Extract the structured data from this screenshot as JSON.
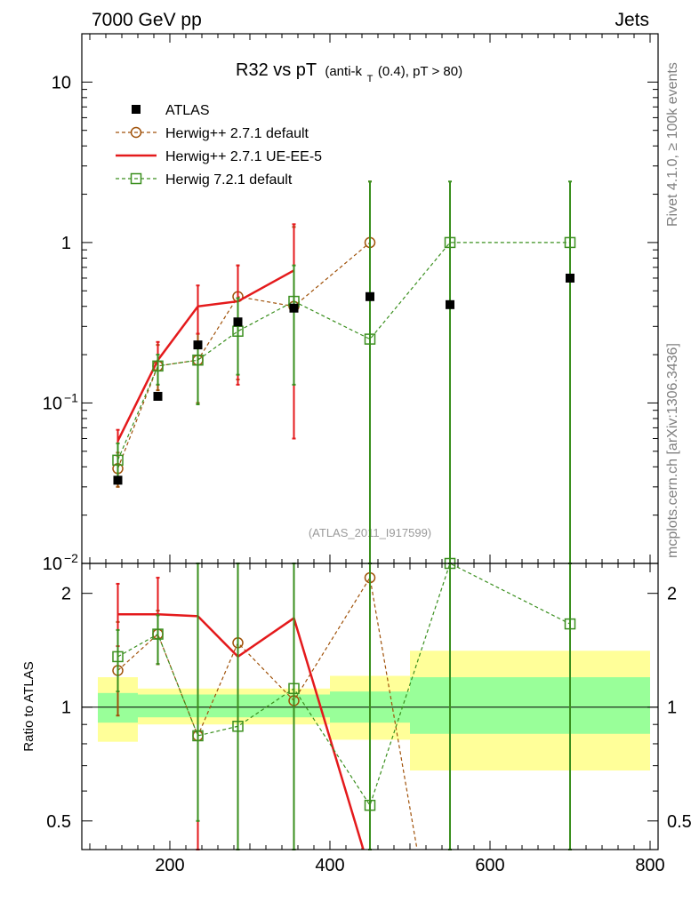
{
  "header": {
    "left": "7000 GeV pp",
    "right": "Jets",
    "side_rivet": "Rivet 4.1.0, ≥ 100k events",
    "side_mcplots": "mcplots.cern.ch [arXiv:1306.3436]",
    "watermark": "(ATLAS_2011_I917599)"
  },
  "title": {
    "main": "R32 vs pT",
    "sub_a": "(anti-k",
    "sub_t": "T",
    "sub_b": "(0.4), pT > 80)"
  },
  "colors": {
    "atlas": "#000000",
    "herwig271": "#a0520a",
    "herwig271_ue": "#e41a1c",
    "herwig721": "#3a8f1e",
    "band_inner": "#99ff99",
    "band_outer": "#ffff99"
  },
  "chart_data": {
    "type": "scatter",
    "x_axis": {
      "range": [
        90,
        810
      ],
      "ticks": [
        200,
        400,
        600,
        800
      ],
      "label": ""
    },
    "main_panel": {
      "yscale": "log",
      "ylim": [
        0.01,
        20
      ],
      "tick_labels": [
        "10",
        "1",
        "10",
        "10"
      ],
      "tick_exps": [
        "",
        "",
        "−1",
        "−2"
      ],
      "ylabel": "",
      "legend_position": "top-left"
    },
    "ratio_panel": {
      "yscale": "log",
      "ylim": [
        0.42,
        2.4
      ],
      "ticks": [
        2,
        1,
        0.5
      ],
      "tick_labels": [
        "2",
        "1",
        "0.5"
      ],
      "ylabel": "Ratio to ATLAS"
    },
    "reference": {
      "name": "ATLAS",
      "x": [
        135,
        185,
        235,
        285,
        355,
        450,
        550,
        700
      ],
      "y": [
        0.033,
        0.11,
        0.23,
        0.32,
        0.39,
        0.46,
        0.41,
        0.6
      ],
      "xbin_edges": [
        110,
        160,
        210,
        260,
        310,
        400,
        500,
        600,
        800
      ],
      "band_inner": [
        [
          0.91,
          1.09
        ],
        [
          0.94,
          1.08
        ],
        [
          0.94,
          1.08
        ],
        [
          0.94,
          1.08
        ],
        [
          0.94,
          1.08
        ],
        [
          0.91,
          1.1
        ],
        [
          0.85,
          1.2
        ],
        [
          0.85,
          1.2
        ]
      ],
      "band_outer": [
        [
          0.81,
          1.2
        ],
        [
          0.9,
          1.12
        ],
        [
          0.9,
          1.12
        ],
        [
          0.9,
          1.12
        ],
        [
          0.9,
          1.12
        ],
        [
          0.82,
          1.21
        ],
        [
          0.68,
          1.41
        ],
        [
          0.68,
          1.41
        ]
      ]
    },
    "series": [
      {
        "name": "Herwig++ 2.7.1 default",
        "style": "circle-dashed",
        "x": [
          135,
          185,
          235,
          285,
          355,
          450
        ],
        "y": [
          0.039,
          0.17,
          0.185,
          0.46,
          0.4,
          1.0
        ],
        "err_up": [
          0.049,
          0.23,
          0.27,
          0.72,
          1.25,
          2.4
        ],
        "err_dn": [
          0.03,
          0.12,
          0.1,
          0.14,
          0.06,
          0.01
        ],
        "ratio": [
          1.25,
          1.56,
          0.84,
          1.48,
          1.04,
          2.2
        ],
        "ratio_up": [
          1.68,
          1.8,
          2.4,
          2.4,
          2.4,
          2.4
        ],
        "ratio_dn": [
          0.95,
          1.3,
          0.42,
          0.42,
          0.42,
          0.42
        ],
        "ratio_tail_x": 560,
        "ratio_tail_y": 0.1
      },
      {
        "name": "Herwig++ 2.7.1 UE-EE-5",
        "style": "line",
        "x": [
          135,
          185,
          235,
          285,
          355
        ],
        "y": [
          0.058,
          0.185,
          0.4,
          0.43,
          0.67
        ],
        "err_up": [
          0.068,
          0.24,
          0.54,
          0.72,
          1.3
        ],
        "err_dn": [
          0.047,
          0.13,
          0.27,
          0.13,
          0.06
        ],
        "ratio": [
          1.76,
          1.76,
          1.74,
          1.36,
          1.72
        ],
        "ratio_up": [
          2.12,
          2.2,
          2.4,
          2.4,
          2.4
        ],
        "ratio_dn": [
          1.45,
          1.3,
          0.42,
          0.42,
          0.42
        ],
        "ratio_tail_x": 530,
        "ratio_tail_y": 0.1
      },
      {
        "name": "Herwig 7.2.1 default",
        "style": "square-dashed",
        "x": [
          135,
          185,
          235,
          285,
          355,
          450,
          550,
          700
        ],
        "y": [
          0.044,
          0.17,
          0.185,
          0.28,
          0.43,
          0.25,
          1.0,
          1.0
        ],
        "err_up": [
          0.056,
          0.2,
          0.22,
          0.45,
          0.72,
          2.4,
          2.4,
          2.4
        ],
        "err_dn": [
          0.034,
          0.13,
          0.098,
          0.15,
          0.13,
          0.01,
          0.01,
          0.01
        ],
        "ratio": [
          1.36,
          1.56,
          0.84,
          0.89,
          1.12,
          0.55,
          2.42,
          1.66
        ],
        "ratio_up": [
          1.6,
          1.75,
          2.4,
          2.4,
          2.4,
          2.4,
          2.4,
          2.4
        ],
        "ratio_dn": [
          1.1,
          1.3,
          0.5,
          0.42,
          0.42,
          0.42,
          0.42,
          0.42
        ]
      }
    ]
  }
}
